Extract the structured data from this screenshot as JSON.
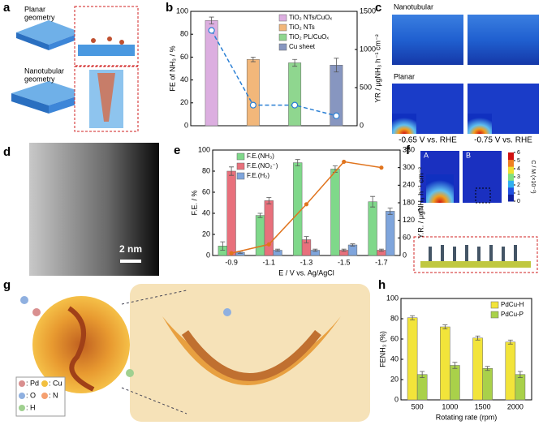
{
  "panel_labels": [
    "a",
    "b",
    "c",
    "d",
    "e",
    "f",
    "g",
    "h"
  ],
  "panel_a": {
    "planar": [
      "Planar",
      "geometry"
    ],
    "nanotubular": [
      "Nanotubular",
      "geometry"
    ]
  },
  "panel_c": {
    "rows": [
      "Nanotubular",
      "Planar"
    ],
    "potentials": [
      "-0.65 V vs. RHE",
      "-0.75 V vs. RHE"
    ]
  },
  "panel_d": {
    "scale_bar": "2 nm"
  },
  "panel_f": {
    "insets": [
      "A",
      "B",
      "C"
    ],
    "colorbar_label": "C / M (×10⁻¹)",
    "colorbar_lim": [
      0,
      6
    ],
    "colorbar_ticks": [
      0,
      1,
      2,
      3,
      4,
      5,
      6
    ]
  },
  "panel_g": {
    "legend": [
      ": Pd",
      ": Cu",
      ": O",
      ": N",
      ": H"
    ]
  },
  "chart_data": [
    {
      "type": "bar",
      "categories": [
        null,
        null,
        null,
        null
      ],
      "ylabel": "FE of NH₃ / %",
      "y2label": "YR / μgNH₃ h⁻¹ cm⁻²",
      "ylim": [
        0,
        100
      ],
      "yticks": [
        0,
        20,
        40,
        60,
        80,
        100
      ],
      "y2lim": [
        0,
        1500
      ],
      "y2ticks": [
        0,
        500,
        1000,
        1500
      ],
      "legend": "top-right",
      "series": [
        {
          "name": "TiO₂ NTs/CuOₓ",
          "color": "#dcaee0",
          "values": [
            92,
            null,
            null,
            null
          ],
          "errors": [
            3,
            null,
            null,
            null
          ]
        },
        {
          "name": "TiO₂ NTs",
          "color": "#f2b77a",
          "values": [
            null,
            58,
            null,
            null
          ],
          "errors": [
            null,
            2,
            null,
            null
          ]
        },
        {
          "name": "TiO₂ PL/CuOₓ",
          "color": "#8fd68f",
          "values": [
            null,
            null,
            55,
            null
          ],
          "errors": [
            null,
            null,
            3,
            null
          ]
        },
        {
          "name": "Cu sheet",
          "color": "#8796c0",
          "values": [
            null,
            null,
            null,
            53
          ],
          "errors": [
            null,
            null,
            null,
            6
          ]
        },
        {
          "type": "line",
          "axis": "y2",
          "color": "#2a7fd4",
          "values": [
            1250,
            270,
            270,
            130
          ]
        }
      ]
    },
    {
      "type": "bar",
      "categories": [
        "-0.9",
        "-1.1",
        "-1.3",
        "-1.5",
        "-1.7"
      ],
      "xlabel": "E / V vs. Ag/AgCl",
      "ylabel": "F.E. / %",
      "y2label": "Y.R. / μgNH₃ h⁻¹ cm⁻²",
      "ylim": [
        0,
        100
      ],
      "yticks": [
        0,
        20,
        40,
        60,
        80,
        100
      ],
      "y2lim": [
        0,
        360
      ],
      "y2ticks": [
        0,
        60,
        120,
        180,
        240,
        300,
        360
      ],
      "legend": "top-left",
      "series": [
        {
          "name": "F.E.(NH₃)",
          "color": "#7fd88a",
          "values": [
            9,
            38,
            88,
            82,
            51
          ],
          "errors": [
            4,
            2,
            3,
            3,
            5
          ]
        },
        {
          "name": "F.E.(NO₂⁻)",
          "color": "#e8707c",
          "values": [
            80,
            52,
            15,
            5,
            5
          ],
          "errors": [
            4,
            3,
            3,
            1,
            1
          ]
        },
        {
          "name": "F.E.(H₂)",
          "color": "#7fa5dc",
          "values": [
            3,
            5,
            5,
            10,
            42
          ],
          "errors": [
            1,
            1,
            1,
            1,
            3
          ]
        },
        {
          "type": "line",
          "axis": "y2",
          "color": "#e0741e",
          "values": [
            8,
            38,
            175,
            320,
            300
          ]
        }
      ]
    },
    {
      "type": "bar",
      "categories": [
        "500",
        "1000",
        "1500",
        "2000"
      ],
      "xlabel": "Rotating rate (rpm)",
      "ylabel": "FENH₃ (%)",
      "ylim": [
        0,
        100
      ],
      "yticks": [
        0,
        20,
        40,
        60,
        80,
        100
      ],
      "legend": "top-right",
      "series": [
        {
          "name": "PdCu-H",
          "color": "#f2e43a",
          "values": [
            81,
            72,
            61,
            57
          ],
          "errors": [
            2,
            2,
            2,
            2
          ]
        },
        {
          "name": "PdCu-P",
          "color": "#a9d14a",
          "values": [
            25,
            34,
            31,
            25
          ],
          "errors": [
            3,
            3,
            2,
            3
          ]
        }
      ]
    }
  ]
}
